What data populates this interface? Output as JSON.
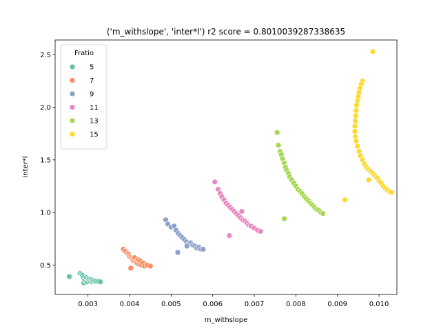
{
  "chart_data": {
    "type": "scatter",
    "title": "('m_withslope', 'inter*l') r2 score = 0.8010039287338635",
    "xlabel": "m_withslope",
    "ylabel": "inter*l",
    "xlim": [
      0.00221,
      0.01043
    ],
    "ylim": [
      0.22,
      2.64
    ],
    "xticks": [
      0.003,
      0.004,
      0.005,
      0.006,
      0.007,
      0.008,
      0.009,
      0.01
    ],
    "xtick_labels": [
      "0.003",
      "0.004",
      "0.005",
      "0.006",
      "0.007",
      "0.008",
      "0.009",
      "0.010"
    ],
    "yticks": [
      0.5,
      1.0,
      1.5,
      2.0,
      2.5
    ],
    "ytick_labels": [
      "0.5",
      "1.0",
      "1.5",
      "2.0",
      "2.5"
    ],
    "grid": false,
    "legend": {
      "title": "Fratio",
      "placement": "top-left"
    },
    "series": [
      {
        "name": "5",
        "color": "#66c2a5",
        "points": [
          [
            0.00255,
            0.39
          ],
          [
            0.00281,
            0.42
          ],
          [
            0.00285,
            0.41
          ],
          [
            0.00287,
            0.4
          ],
          [
            0.00289,
            0.38
          ],
          [
            0.0029,
            0.33
          ],
          [
            0.00292,
            0.36
          ],
          [
            0.00294,
            0.35
          ],
          [
            0.00296,
            0.38
          ],
          [
            0.00298,
            0.34
          ],
          [
            0.003,
            0.37
          ],
          [
            0.00302,
            0.36
          ],
          [
            0.00305,
            0.35
          ],
          [
            0.00308,
            0.36
          ],
          [
            0.0031,
            0.34
          ],
          [
            0.00313,
            0.35
          ],
          [
            0.00316,
            0.35
          ],
          [
            0.0032,
            0.345
          ],
          [
            0.00325,
            0.345
          ],
          [
            0.0033,
            0.34
          ]
        ]
      },
      {
        "name": "7",
        "color": "#fc8d62",
        "points": [
          [
            0.00385,
            0.65
          ],
          [
            0.0039,
            0.63
          ],
          [
            0.00395,
            0.61
          ],
          [
            0.00398,
            0.6
          ],
          [
            0.004,
            0.58
          ],
          [
            0.00403,
            0.57
          ],
          [
            0.00406,
            0.56
          ],
          [
            0.00408,
            0.55
          ],
          [
            0.0041,
            0.54
          ],
          [
            0.00412,
            0.57
          ],
          [
            0.00415,
            0.53
          ],
          [
            0.00418,
            0.52
          ],
          [
            0.0042,
            0.55
          ],
          [
            0.00422,
            0.51
          ],
          [
            0.00425,
            0.54
          ],
          [
            0.00428,
            0.5
          ],
          [
            0.00432,
            0.52
          ],
          [
            0.00436,
            0.49
          ],
          [
            0.00442,
            0.5
          ],
          [
            0.0045,
            0.49
          ],
          [
            0.00403,
            0.47
          ]
        ]
      },
      {
        "name": "9",
        "color": "#8da0cb",
        "points": [
          [
            0.00487,
            0.93
          ],
          [
            0.00492,
            0.89
          ],
          [
            0.005,
            0.86
          ],
          [
            0.00507,
            0.87
          ],
          [
            0.00512,
            0.83
          ],
          [
            0.00517,
            0.8
          ],
          [
            0.00522,
            0.78
          ],
          [
            0.00527,
            0.76
          ],
          [
            0.00532,
            0.74
          ],
          [
            0.00537,
            0.72
          ],
          [
            0.00542,
            0.7
          ],
          [
            0.00547,
            0.71
          ],
          [
            0.00552,
            0.69
          ],
          [
            0.00557,
            0.68
          ],
          [
            0.00562,
            0.66
          ],
          [
            0.00567,
            0.67
          ],
          [
            0.00572,
            0.65
          ],
          [
            0.00577,
            0.65
          ],
          [
            0.00538,
            0.68
          ],
          [
            0.00516,
            0.62
          ]
        ]
      },
      {
        "name": "11",
        "color": "#e78ac3",
        "points": [
          [
            0.00605,
            1.29
          ],
          [
            0.00613,
            1.22
          ],
          [
            0.00618,
            1.18
          ],
          [
            0.00622,
            1.15
          ],
          [
            0.00627,
            1.12
          ],
          [
            0.00632,
            1.09
          ],
          [
            0.00637,
            1.07
          ],
          [
            0.00642,
            1.05
          ],
          [
            0.00647,
            1.03
          ],
          [
            0.00652,
            1.01
          ],
          [
            0.00657,
            0.99
          ],
          [
            0.00662,
            0.97
          ],
          [
            0.00667,
            0.95
          ],
          [
            0.00672,
            0.93
          ],
          [
            0.00677,
            0.92
          ],
          [
            0.00682,
            0.9
          ],
          [
            0.00687,
            0.88
          ],
          [
            0.00692,
            0.87
          ],
          [
            0.007,
            0.85
          ],
          [
            0.00708,
            0.83
          ],
          [
            0.00715,
            0.82
          ],
          [
            0.0067,
            1.01
          ],
          [
            0.0064,
            0.78
          ]
        ]
      },
      {
        "name": "13",
        "color": "#a6d854",
        "points": [
          [
            0.00755,
            1.76
          ],
          [
            0.00758,
            1.64
          ],
          [
            0.00762,
            1.58
          ],
          [
            0.00765,
            1.55
          ],
          [
            0.00768,
            1.51
          ],
          [
            0.00772,
            1.47
          ],
          [
            0.00775,
            1.43
          ],
          [
            0.00778,
            1.4
          ],
          [
            0.00782,
            1.37
          ],
          [
            0.00785,
            1.34
          ],
          [
            0.0079,
            1.31
          ],
          [
            0.00795,
            1.28
          ],
          [
            0.008,
            1.25
          ],
          [
            0.00805,
            1.22
          ],
          [
            0.0081,
            1.2
          ],
          [
            0.00815,
            1.18
          ],
          [
            0.0082,
            1.15
          ],
          [
            0.00825,
            1.13
          ],
          [
            0.0083,
            1.11
          ],
          [
            0.00835,
            1.09
          ],
          [
            0.0084,
            1.07
          ],
          [
            0.00845,
            1.05
          ],
          [
            0.0085,
            1.03
          ],
          [
            0.00855,
            1.02
          ],
          [
            0.0086,
            1.0
          ],
          [
            0.00865,
            0.99
          ],
          [
            0.00772,
            0.94
          ]
        ]
      },
      {
        "name": "15",
        "color": "#ffd92f",
        "points": [
          [
            0.00985,
            2.53
          ],
          [
            0.0096,
            2.25
          ],
          [
            0.00957,
            2.22
          ],
          [
            0.00954,
            2.18
          ],
          [
            0.00952,
            2.14
          ],
          [
            0.0095,
            2.1
          ],
          [
            0.00948,
            2.06
          ],
          [
            0.00946,
            2.02
          ],
          [
            0.00945,
            1.97
          ],
          [
            0.00944,
            1.92
          ],
          [
            0.00943,
            1.87
          ],
          [
            0.00942,
            1.82
          ],
          [
            0.00942,
            1.77
          ],
          [
            0.00943,
            1.72
          ],
          [
            0.00945,
            1.68
          ],
          [
            0.00948,
            1.63
          ],
          [
            0.00952,
            1.58
          ],
          [
            0.00955,
            1.54
          ],
          [
            0.0096,
            1.5
          ],
          [
            0.00965,
            1.46
          ],
          [
            0.0097,
            1.43
          ],
          [
            0.00975,
            1.41
          ],
          [
            0.0098,
            1.39
          ],
          [
            0.00985,
            1.37
          ],
          [
            0.0099,
            1.35
          ],
          [
            0.00995,
            1.33
          ],
          [
            0.01,
            1.3
          ],
          [
            0.01005,
            1.28
          ],
          [
            0.0101,
            1.25
          ],
          [
            0.01015,
            1.23
          ],
          [
            0.0102,
            1.21
          ],
          [
            0.01025,
            1.2
          ],
          [
            0.0103,
            1.19
          ],
          [
            0.00975,
            1.31
          ],
          [
            0.00918,
            1.12
          ]
        ]
      }
    ]
  }
}
